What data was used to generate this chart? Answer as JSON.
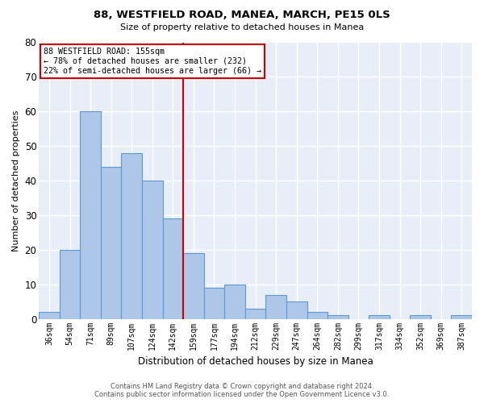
{
  "title": "88, WESTFIELD ROAD, MANEA, MARCH, PE15 0LS",
  "subtitle": "Size of property relative to detached houses in Manea",
  "xlabel": "Distribution of detached houses by size in Manea",
  "ylabel": "Number of detached properties",
  "bar_labels": [
    "36sqm",
    "54sqm",
    "71sqm",
    "89sqm",
    "107sqm",
    "124sqm",
    "142sqm",
    "159sqm",
    "177sqm",
    "194sqm",
    "212sqm",
    "229sqm",
    "247sqm",
    "264sqm",
    "282sqm",
    "299sqm",
    "317sqm",
    "334sqm",
    "352sqm",
    "369sqm",
    "387sqm"
  ],
  "bar_values": [
    2,
    20,
    60,
    44,
    48,
    40,
    29,
    19,
    9,
    10,
    3,
    7,
    5,
    2,
    1,
    0,
    1,
    0,
    1,
    0,
    1
  ],
  "bar_color": "#aec6e8",
  "bar_edge_color": "#5b9bd5",
  "vline_index": 7,
  "vline_color": "#cc0000",
  "ylim": [
    0,
    80
  ],
  "yticks": [
    0,
    10,
    20,
    30,
    40,
    50,
    60,
    70,
    80
  ],
  "annotation_line1": "88 WESTFIELD ROAD: 155sqm",
  "annotation_line2": "← 78% of detached houses are smaller (232)",
  "annotation_line3": "22% of semi-detached houses are larger (66) →",
  "bg_color": "#e8eef8",
  "grid_color": "#ffffff",
  "footer_line1": "Contains HM Land Registry data © Crown copyright and database right 2024.",
  "footer_line2": "Contains public sector information licensed under the Open Government Licence v3.0."
}
